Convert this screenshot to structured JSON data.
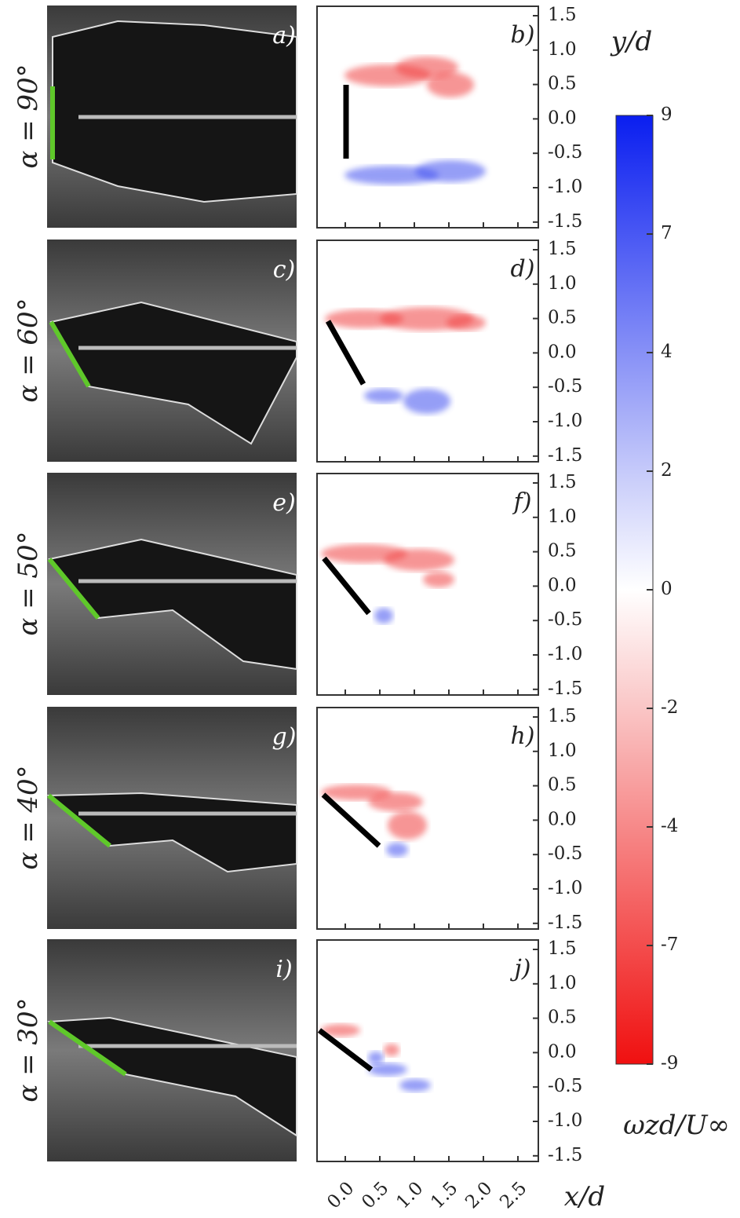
{
  "rows": [
    {
      "angle_label": "α = 90°",
      "photo_label": "a)",
      "plot_label": "b)"
    },
    {
      "angle_label": "α = 60°",
      "photo_label": "c)",
      "plot_label": "d)"
    },
    {
      "angle_label": "α = 50°",
      "photo_label": "e)",
      "plot_label": "f)"
    },
    {
      "angle_label": "α = 40°",
      "photo_label": "g)",
      "plot_label": "h)"
    },
    {
      "angle_label": "α = 30°",
      "photo_label": "i)",
      "plot_label": "j)"
    }
  ],
  "y_ticks": [
    "1.5",
    "1.0",
    "0.5",
    "0.0",
    "-0.5",
    "-1.0",
    "-1.5"
  ],
  "x_ticks": [
    "0.0",
    "0.5",
    "1.0",
    "1.5",
    "2.0",
    "2.5"
  ],
  "y_axis_label": "y/d",
  "x_axis_label": "x/d",
  "colorbar": {
    "label": "ωzd/U∞",
    "ticks": [
      "9",
      "7",
      "4",
      "2",
      "0",
      "-2",
      "-4",
      "-7",
      "-9"
    ]
  }
}
